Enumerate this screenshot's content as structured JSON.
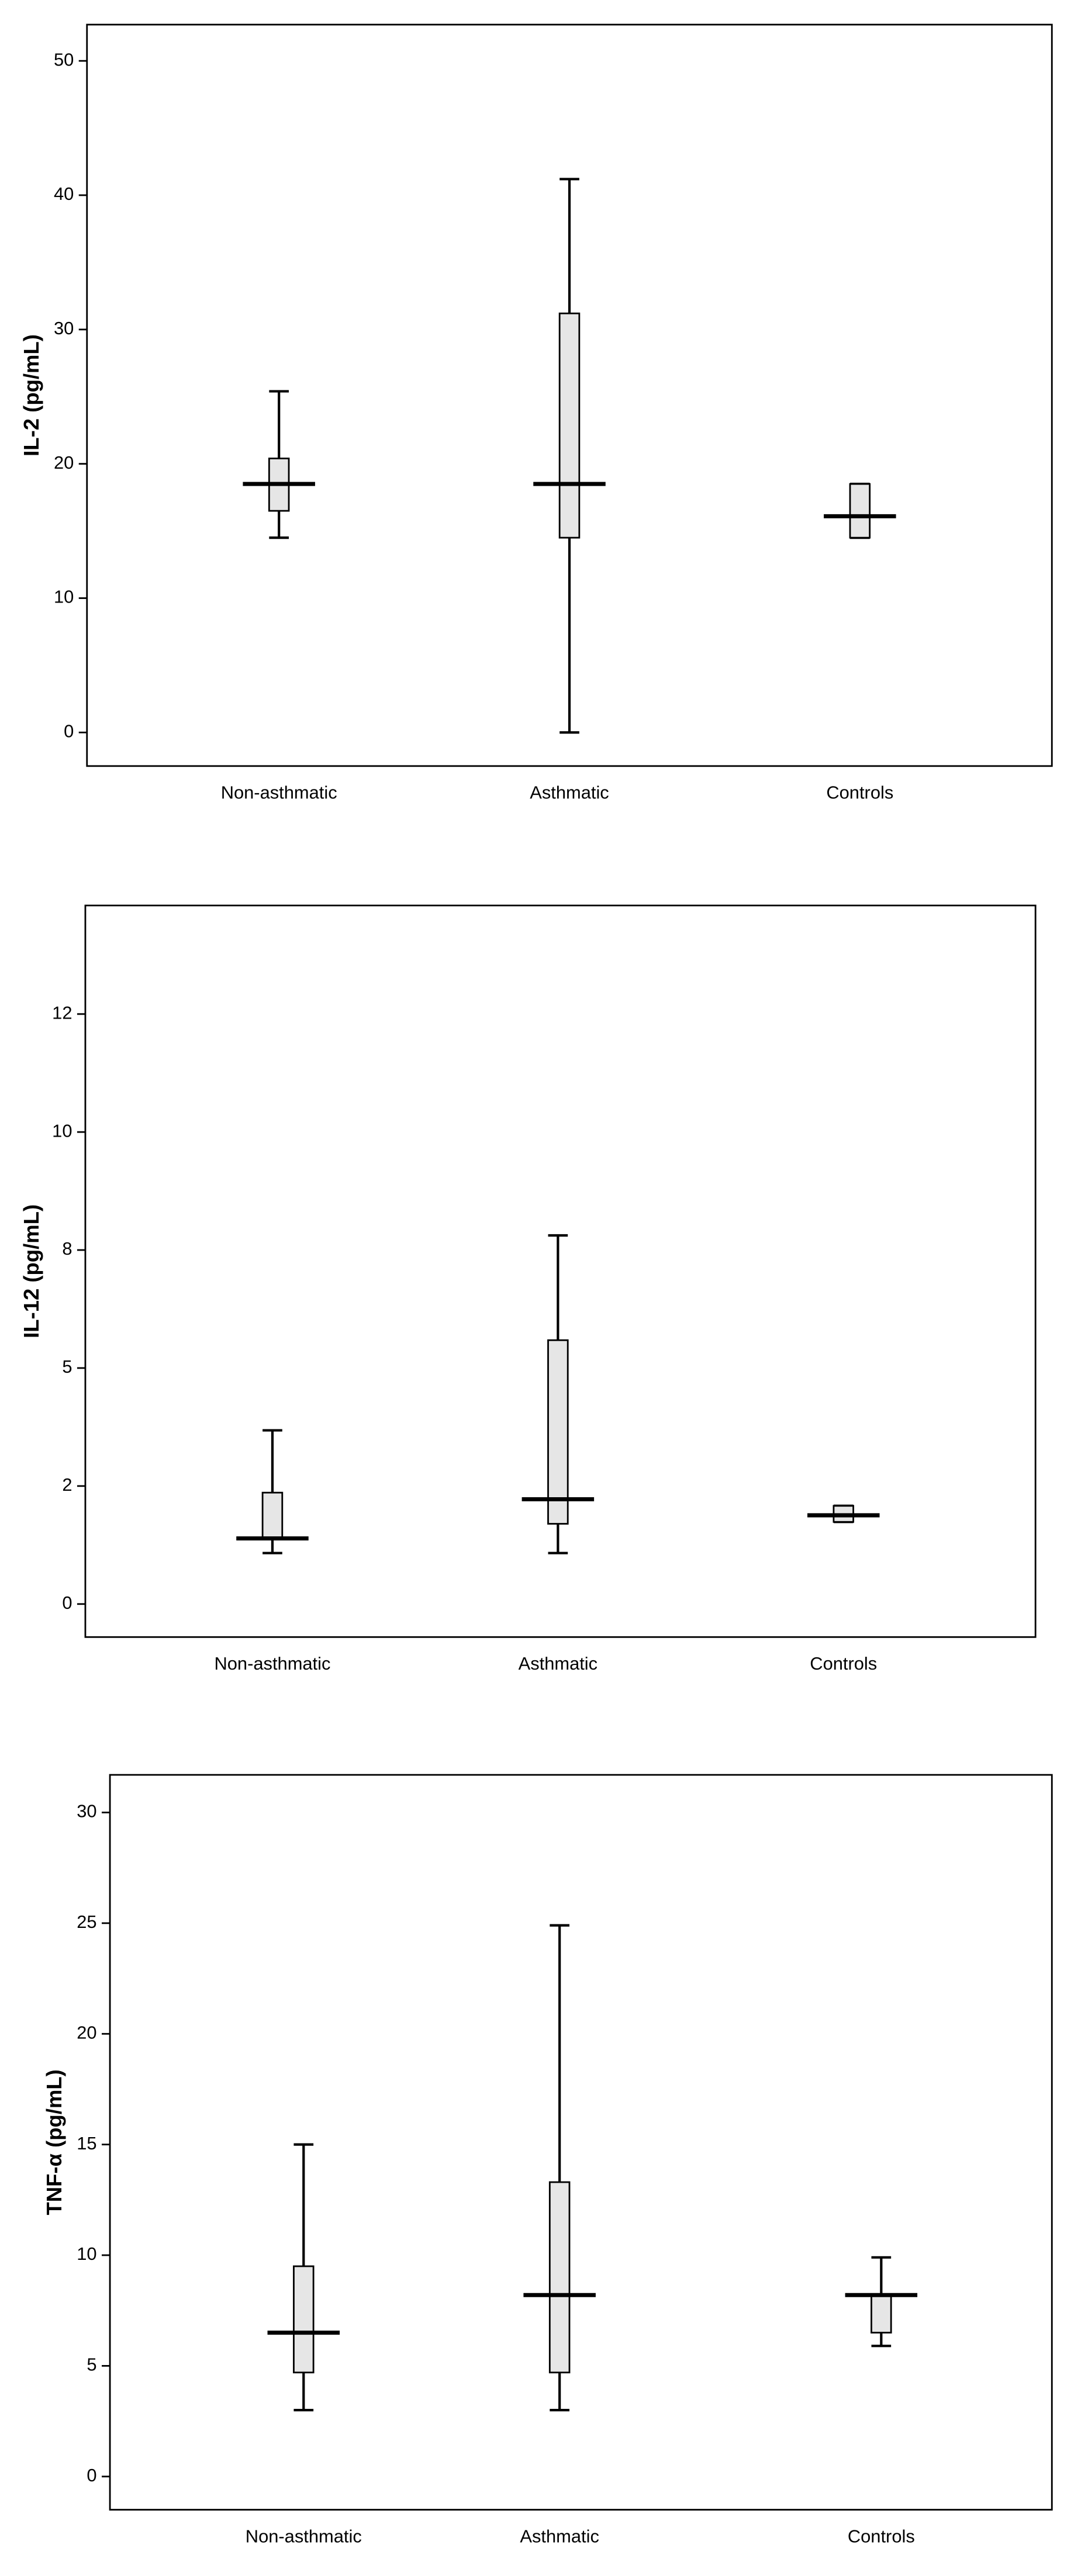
{
  "chart_data": [
    {
      "type": "box",
      "y_label": "IL-2 (pg/mL)",
      "categories": [
        "Non-asthmatic",
        "Asthmatic",
        "Controls"
      ],
      "min": [
        14.5,
        0,
        14.5
      ],
      "q1": [
        16.5,
        14.5,
        14.5
      ],
      "median": [
        18.5,
        18.5,
        16.1
      ],
      "q3": [
        20.4,
        31.2,
        18.5
      ],
      "max": [
        25.4,
        41.2,
        18.5
      ],
      "color": "#e6e6e6",
      "ylim": [
        -2.5,
        52.7
      ],
      "yticks": [
        0,
        10,
        20,
        30,
        40,
        50
      ]
    },
    {
      "type": "box",
      "y_label": "IL-12 (pg/mL)",
      "categories": [
        "Non-asthmatic",
        "Asthmatic",
        "Controls"
      ],
      "min": [
        1.08,
        1.08,
        1.74
      ],
      "q1": [
        1.39,
        1.7,
        1.74
      ],
      "median": [
        1.39,
        2.22,
        1.88
      ],
      "q3": [
        2.36,
        5.59,
        2.08
      ],
      "max": [
        3.68,
        7.81,
        2.08
      ],
      "color": "#e6e6e6",
      "ylim": [
        -0.7,
        14.8
      ],
      "yticks": [
        0,
        {
          "value": 2.5,
          "label": "2"
        },
        5,
        {
          "value": 7.5,
          "label": "8"
        },
        10,
        {
          "value": 12.5,
          "label": "12"
        }
      ]
    },
    {
      "type": "box",
      "y_label": "TNF-α  (pg/mL)",
      "categories": [
        "Non-asthmatic",
        "Asthmatic",
        "Controls"
      ],
      "min": [
        3.0,
        3.0,
        5.9
      ],
      "q1": [
        4.7,
        4.7,
        6.5
      ],
      "median": [
        6.5,
        8.2,
        8.2
      ],
      "q3": [
        9.5,
        13.3,
        8.2
      ],
      "max": [
        15.0,
        24.9,
        9.9
      ],
      "color": "#e6e6e6",
      "ylim": [
        -1.5,
        31.7
      ],
      "yticks": [
        0,
        5,
        10,
        15,
        20,
        25,
        30
      ]
    }
  ]
}
